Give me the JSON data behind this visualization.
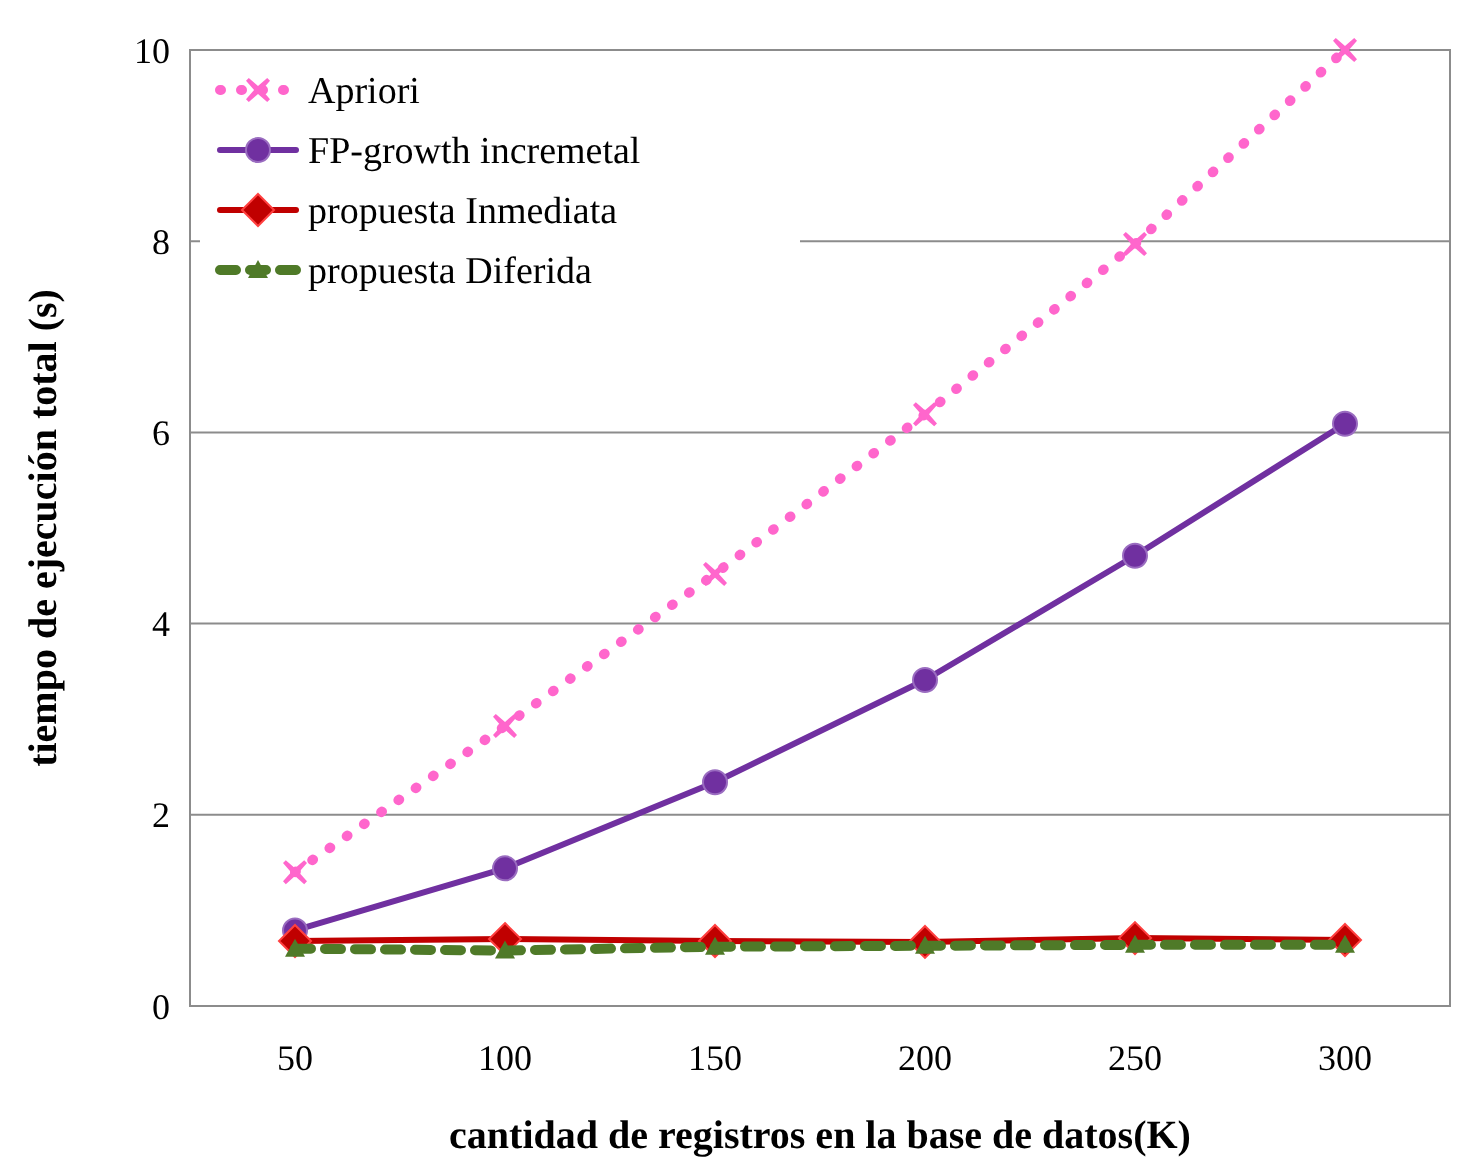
{
  "chart_data": {
    "type": "line",
    "xlabel": "cantidad de registros en la base de datos(K)",
    "ylabel": "tiempo de ejecución total (s)",
    "categories": [
      "50",
      "100",
      "150",
      "200",
      "250",
      "300"
    ],
    "series": [
      {
        "name": "Apriori",
        "color": "#ff66cc",
        "marker": "cross",
        "line_style": "dotted",
        "values": [
          1.4,
          2.93,
          4.52,
          6.19,
          7.97,
          10
        ]
      },
      {
        "name": "FP-growth incremetal",
        "color": "#7030a0",
        "marker": "circle",
        "line_style": "solid",
        "values": [
          0.79,
          1.44,
          2.34,
          3.41,
          4.71,
          6.09
        ]
      },
      {
        "name": "propuesta Inmediata",
        "color": "#c00000",
        "marker": "diamond",
        "line_style": "solid",
        "values": [
          0.68,
          0.7,
          0.68,
          0.67,
          0.71,
          0.69
        ]
      },
      {
        "name": "propuesta Diferida",
        "color": "#4f7a28",
        "marker": "triangle",
        "line_style": "dashed",
        "values": [
          0.6,
          0.58,
          0.62,
          0.63,
          0.64,
          0.64
        ]
      }
    ],
    "ylim": [
      0,
      10
    ],
    "yticks": [
      0,
      2,
      4,
      6,
      8,
      10
    ],
    "grid": "y",
    "legend": "top left"
  }
}
